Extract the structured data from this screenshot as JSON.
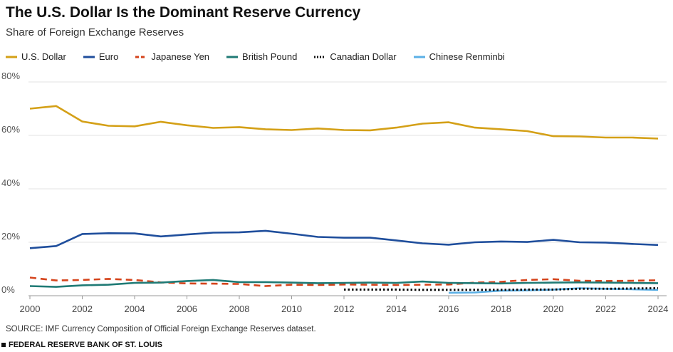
{
  "header": {
    "title": "The U.S. Dollar Is the Dominant Reserve Currency",
    "subtitle": "Share of Foreign Exchange Reserves"
  },
  "footer": {
    "source": "SOURCE: IMF Currency Composition of Official Foreign Exchange Reserves dataset.",
    "org": "FEDERAL RESERVE BANK OF ST. LOUIS"
  },
  "chart_data": {
    "type": "line",
    "title": "The U.S. Dollar Is the Dominant Reserve Currency",
    "subtitle": "Share of Foreign Exchange Reserves",
    "xlabel": "",
    "ylabel": "",
    "xlim": [
      2000,
      2024
    ],
    "ylim": [
      0,
      80
    ],
    "x_ticks": [
      2000,
      2002,
      2004,
      2006,
      2008,
      2010,
      2012,
      2014,
      2016,
      2018,
      2020,
      2022,
      2024
    ],
    "y_ticks": [
      0,
      20,
      40,
      60,
      80
    ],
    "y_tick_suffix": "%",
    "grid": "horizontal",
    "legend_position": "top-left",
    "series": [
      {
        "name": "U.S. Dollar",
        "color": "#d4a017",
        "dash": "solid",
        "x": [
          2000,
          2001,
          2002,
          2003,
          2004,
          2005,
          2006,
          2007,
          2008,
          2009,
          2010,
          2011,
          2012,
          2013,
          2014,
          2015,
          2016,
          2017,
          2018,
          2019,
          2020,
          2021,
          2022,
          2023,
          2024
        ],
        "values": [
          70.0,
          71.0,
          65.2,
          63.6,
          63.4,
          65.1,
          63.8,
          62.8,
          63.1,
          62.3,
          62.0,
          62.6,
          62.0,
          61.9,
          62.9,
          64.4,
          64.9,
          62.9,
          62.3,
          61.6,
          59.7,
          59.6,
          59.2,
          59.2,
          58.8
        ]
      },
      {
        "name": "Euro",
        "color": "#1f4e9c",
        "dash": "solid",
        "x": [
          2000,
          2001,
          2002,
          2003,
          2004,
          2005,
          2006,
          2007,
          2008,
          2009,
          2010,
          2011,
          2012,
          2013,
          2014,
          2015,
          2016,
          2017,
          2018,
          2019,
          2020,
          2021,
          2022,
          2023,
          2024
        ],
        "values": [
          17.8,
          18.6,
          23.1,
          23.4,
          23.3,
          22.2,
          22.9,
          23.6,
          23.7,
          24.3,
          23.2,
          22.0,
          21.7,
          21.7,
          20.7,
          19.6,
          19.1,
          20.0,
          20.3,
          20.1,
          20.9,
          20.0,
          19.9,
          19.4,
          19.0
        ]
      },
      {
        "name": "Japanese Yen",
        "color": "#d5441c",
        "dash": "dashed",
        "x": [
          2000,
          2001,
          2002,
          2003,
          2004,
          2005,
          2006,
          2007,
          2008,
          2009,
          2010,
          2011,
          2012,
          2013,
          2014,
          2015,
          2016,
          2017,
          2018,
          2019,
          2020,
          2021,
          2022,
          2023,
          2024
        ],
        "values": [
          6.8,
          5.7,
          5.9,
          6.3,
          5.9,
          5.0,
          4.6,
          4.5,
          4.4,
          3.6,
          4.1,
          4.0,
          4.2,
          4.1,
          4.0,
          4.1,
          4.2,
          4.9,
          5.2,
          5.9,
          6.2,
          5.6,
          5.5,
          5.6,
          5.8
        ]
      },
      {
        "name": "British Pound",
        "color": "#1f7a75",
        "dash": "solid",
        "x": [
          2000,
          2001,
          2002,
          2003,
          2004,
          2005,
          2006,
          2007,
          2008,
          2009,
          2010,
          2011,
          2012,
          2013,
          2014,
          2015,
          2016,
          2017,
          2018,
          2019,
          2020,
          2021,
          2022,
          2023,
          2024
        ],
        "values": [
          3.6,
          3.3,
          3.9,
          4.1,
          4.8,
          4.9,
          5.5,
          5.9,
          5.1,
          5.1,
          4.9,
          4.7,
          4.8,
          4.9,
          4.8,
          5.3,
          4.8,
          4.7,
          4.6,
          4.8,
          4.9,
          5.0,
          4.9,
          4.8,
          4.7
        ]
      },
      {
        "name": "Canadian Dollar",
        "color": "#111111",
        "dash": "dotted",
        "x": [
          2012,
          2013,
          2014,
          2015,
          2016,
          2017,
          2018,
          2019,
          2020,
          2021,
          2022,
          2023,
          2024
        ],
        "values": [
          2.3,
          2.3,
          2.3,
          2.2,
          2.2,
          2.2,
          2.2,
          2.3,
          2.3,
          2.6,
          2.6,
          2.7,
          2.8
        ]
      },
      {
        "name": "Chinese Renminbi",
        "color": "#5bb0e6",
        "dash": "solid",
        "x": [
          2016,
          2017,
          2018,
          2019,
          2020,
          2021,
          2022,
          2023,
          2024
        ],
        "values": [
          1.1,
          1.2,
          1.9,
          2.0,
          2.3,
          2.8,
          2.6,
          2.4,
          2.2
        ]
      }
    ]
  }
}
